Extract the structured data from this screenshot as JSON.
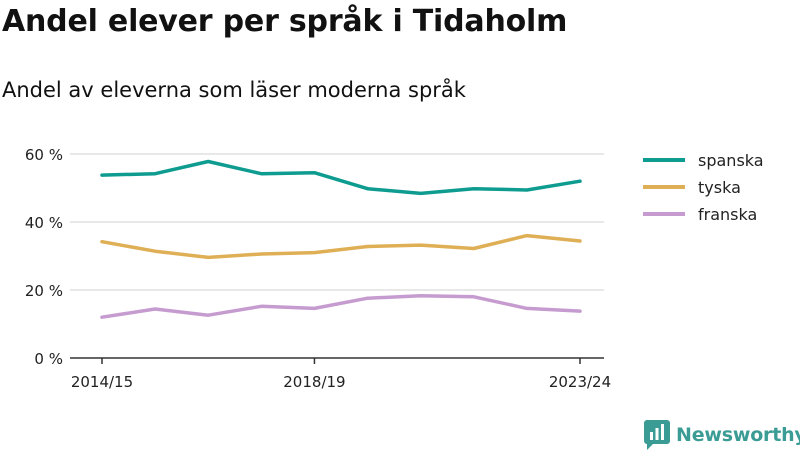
{
  "title": "Andel elever per språk i Tidaholm",
  "subtitle": "Andel av eleverna som läser moderna språk",
  "brand": "Newsworthy",
  "colors": {
    "spanska": "#0e9c91",
    "tyska": "#dfaf56",
    "franska": "#c69cd0",
    "grid": "#d9d9d9",
    "axis": "#333333",
    "brand": "#3a9c94"
  },
  "chart_data": {
    "type": "line",
    "x": [
      "2014/15",
      "2015/16",
      "2016/17",
      "2017/18",
      "2018/19",
      "2019/20",
      "2020/21",
      "2021/22",
      "2022/23",
      "2023/24"
    ],
    "x_tick_labels": [
      "2014/15",
      "2018/19",
      "2023/24"
    ],
    "y_ticks": [
      "0 %",
      "20 %",
      "40 %",
      "60 %"
    ],
    "ylim": [
      0,
      60
    ],
    "grid": true,
    "legend_position": "right",
    "series": [
      {
        "name": "spanska",
        "values": [
          53.8,
          54.2,
          57.8,
          54.2,
          54.5,
          49.8,
          48.4,
          49.8,
          49.4,
          52.0
        ]
      },
      {
        "name": "tyska",
        "values": [
          34.2,
          31.4,
          29.6,
          30.6,
          31.0,
          32.8,
          33.2,
          32.2,
          36.0,
          34.4
        ]
      },
      {
        "name": "franska",
        "values": [
          12.0,
          14.4,
          12.6,
          15.2,
          14.6,
          17.6,
          18.3,
          18.0,
          14.6,
          13.8
        ]
      }
    ]
  }
}
